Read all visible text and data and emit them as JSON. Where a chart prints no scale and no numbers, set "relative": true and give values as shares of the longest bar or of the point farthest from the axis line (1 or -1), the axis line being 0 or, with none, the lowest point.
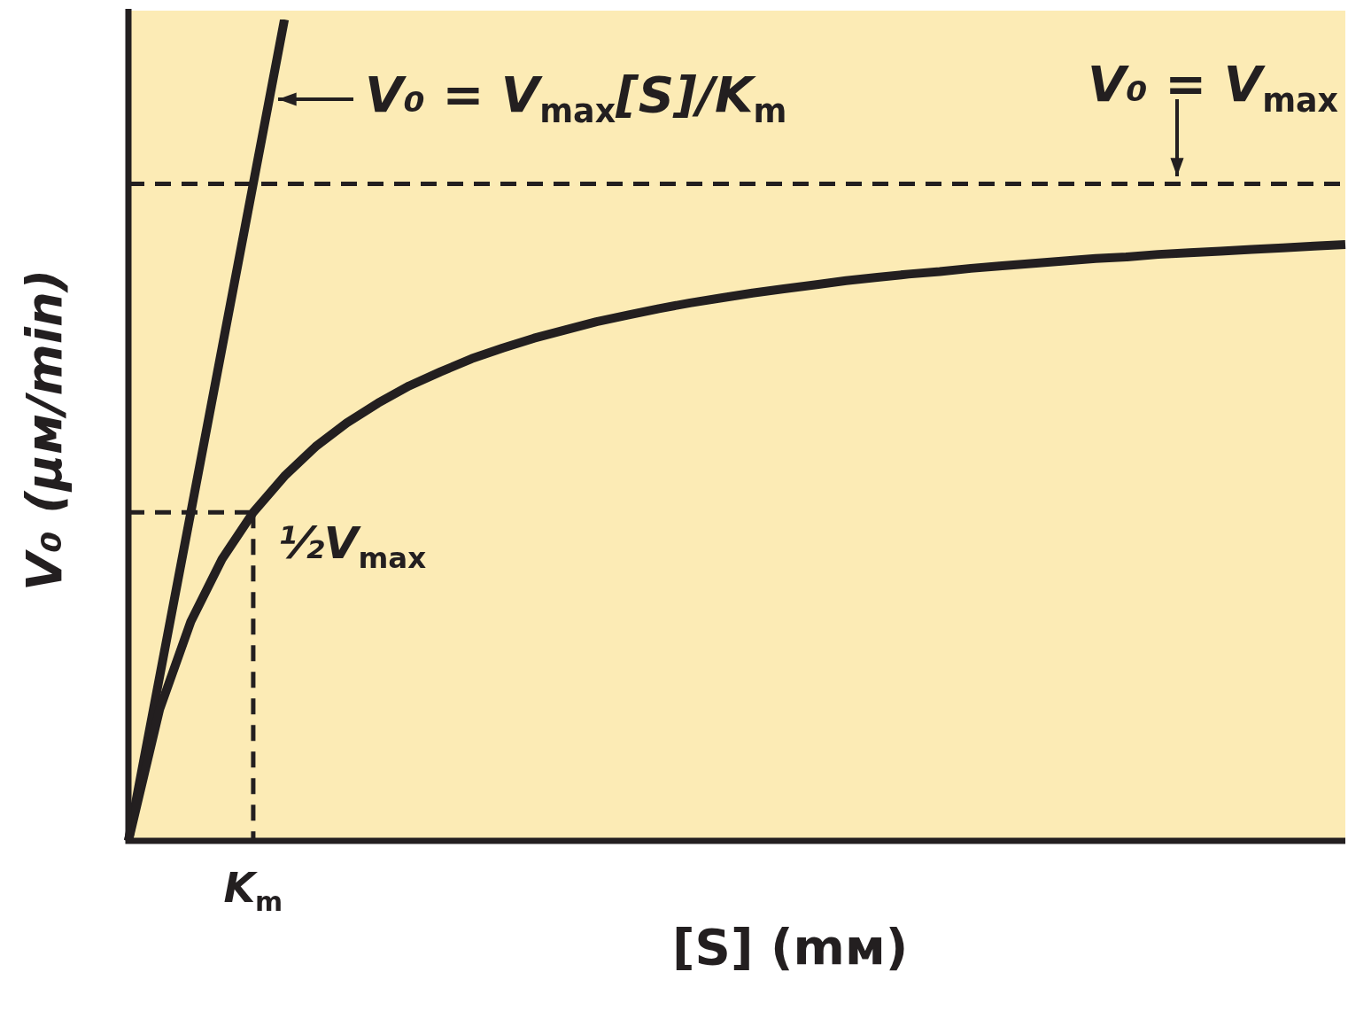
{
  "chart_data": {
    "type": "line",
    "relative": true,
    "xlabel": "[S] (mᴍ)",
    "ylabel": "V₀ (μᴍ/min)",
    "legend": false,
    "categories": [
      null,
      null,
      null,
      null,
      null,
      null,
      null,
      null,
      null,
      null,
      null,
      null,
      null,
      null,
      null,
      null,
      null,
      null,
      null,
      null,
      null,
      null,
      null,
      null,
      null,
      null,
      null,
      null,
      null,
      null,
      null,
      null,
      null,
      null,
      null,
      null,
      null,
      null,
      null,
      null
    ],
    "series": [
      {
        "color": "#231f20",
        "values": [
          0,
          0.16,
          0.267,
          0.343,
          0.4,
          0.444,
          0.48,
          0.509,
          0.533,
          0.554,
          0.571,
          0.587,
          0.6,
          0.612,
          0.622,
          0.632,
          0.64,
          0.648,
          0.655,
          0.661,
          0.667,
          0.672,
          0.677,
          0.682,
          0.686,
          0.69,
          0.693,
          0.697,
          0.7,
          0.703,
          0.706,
          0.709,
          0.711,
          0.714,
          0.716,
          0.718,
          0.72,
          0.722,
          0.724,
          0.726
        ]
      },
      {
        "color": "#231f20",
        "values": [
          0,
          0.2,
          0.4,
          0.6,
          0.8,
          1,
          null,
          null,
          null,
          null,
          null,
          null,
          null,
          null,
          null,
          null,
          null,
          null,
          null,
          null,
          null,
          null,
          null,
          null,
          null,
          null,
          null,
          null,
          null,
          null,
          null,
          null,
          null,
          null,
          null,
          null,
          null,
          null,
          null,
          null
        ]
      },
      {
        "color": "#231f20",
        "line_style": "dashed",
        "values": [
          0.4,
          0.4,
          0.4,
          0.4,
          0.4,
          null,
          null,
          null,
          null,
          null,
          null,
          null,
          null,
          null,
          null,
          null,
          null,
          null,
          null,
          null,
          null,
          null,
          null,
          null,
          null,
          null,
          null,
          null,
          null,
          null,
          null,
          null,
          null,
          null,
          null,
          null,
          null,
          null,
          null,
          null
        ]
      }
    ],
    "ref_lines": [
      {
        "axis": "y",
        "value": 0.8,
        "label": "V₀ = V$_{max}$",
        "color": "#231f20",
        "line_style": "dashed"
      }
    ],
    "annotations": [
      "V₀ = V$_{max}$[S]/K$_{m}$",
      "½V$_{max}$",
      "K$_{m}$"
    ]
  }
}
